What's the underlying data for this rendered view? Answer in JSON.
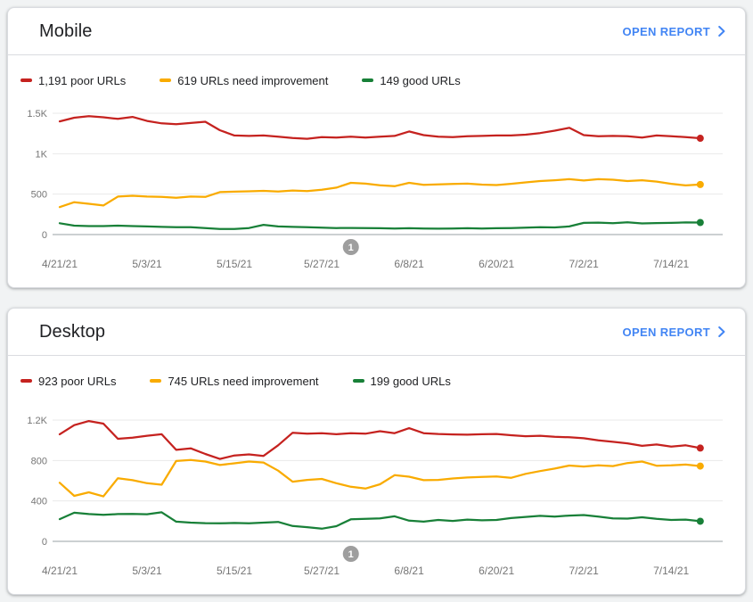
{
  "page": {
    "background": "#f1f3f4"
  },
  "colors": {
    "poor": "#c5221f",
    "needs_improvement": "#f9ab00",
    "good": "#188038",
    "link": "#4285f4",
    "axis_text": "#757575",
    "gridline": "#e9e9e9",
    "baseline": "#9aa0a6",
    "marker_fill": "#9e9e9e"
  },
  "cards": [
    {
      "title": "Mobile",
      "open_report_label": "OPEN REPORT",
      "legend": [
        {
          "label": "1,191 poor URLs",
          "color": "#c5221f"
        },
        {
          "label": "619 URLs need improvement",
          "color": "#f9ab00"
        },
        {
          "label": "149 good URLs",
          "color": "#188038"
        }
      ],
      "chart_data": {
        "type": "line",
        "x_tick_labels": [
          "4/21/21",
          "5/3/21",
          "5/15/21",
          "5/27/21",
          "6/8/21",
          "6/20/21",
          "7/2/21",
          "7/14/21"
        ],
        "x_span_days": 89,
        "x_tick_interval_days": 12,
        "point_interval_days": 2,
        "y_max": 1500,
        "y_ticks": [
          {
            "value": 0,
            "label": "0"
          },
          {
            "value": 500,
            "label": "500"
          },
          {
            "value": 1000,
            "label": "1K"
          },
          {
            "value": 1500,
            "label": "1.5K"
          }
        ],
        "grid": true,
        "legend_position": "top",
        "annotation_marker": {
          "label": "1",
          "day": 40
        },
        "series": [
          {
            "name": "poor URLs",
            "color": "#c5221f",
            "values": [
              1400,
              1445,
              1465,
              1450,
              1430,
              1455,
              1405,
              1375,
              1365,
              1380,
              1395,
              1290,
              1225,
              1220,
              1225,
              1210,
              1195,
              1185,
              1205,
              1200,
              1210,
              1200,
              1210,
              1220,
              1275,
              1230,
              1210,
              1205,
              1215,
              1220,
              1225,
              1225,
              1235,
              1255,
              1285,
              1320,
              1230,
              1215,
              1220,
              1215,
              1200,
              1225,
              1215,
              1205,
              1191
            ]
          },
          {
            "name": "URLs need improvement",
            "color": "#f9ab00",
            "values": [
              340,
              400,
              380,
              360,
              470,
              480,
              470,
              465,
              455,
              470,
              465,
              525,
              530,
              535,
              540,
              532,
              545,
              538,
              555,
              580,
              640,
              630,
              610,
              598,
              640,
              615,
              620,
              625,
              630,
              618,
              612,
              628,
              645,
              662,
              672,
              685,
              668,
              685,
              678,
              662,
              672,
              655,
              628,
              608,
              619
            ]
          },
          {
            "name": "good URLs",
            "color": "#188038",
            "values": [
              140,
              110,
              105,
              105,
              110,
              105,
              100,
              95,
              90,
              90,
              80,
              70,
              70,
              80,
              120,
              100,
              95,
              90,
              85,
              80,
              82,
              80,
              78,
              75,
              78,
              75,
              73,
              75,
              78,
              75,
              78,
              80,
              85,
              90,
              88,
              100,
              145,
              148,
              140,
              152,
              138,
              142,
              145,
              150,
              149
            ]
          }
        ]
      }
    },
    {
      "title": "Desktop",
      "open_report_label": "OPEN REPORT",
      "legend": [
        {
          "label": "923 poor URLs",
          "color": "#c5221f"
        },
        {
          "label": "745 URLs need improvement",
          "color": "#f9ab00"
        },
        {
          "label": "199 good URLs",
          "color": "#188038"
        }
      ],
      "chart_data": {
        "type": "line",
        "x_tick_labels": [
          "4/21/21",
          "5/3/21",
          "5/15/21",
          "5/27/21",
          "6/8/21",
          "6/20/21",
          "7/2/21",
          "7/14/21"
        ],
        "x_span_days": 89,
        "x_tick_interval_days": 12,
        "point_interval_days": 2,
        "y_max": 1200,
        "y_ticks": [
          {
            "value": 0,
            "label": "0"
          },
          {
            "value": 400,
            "label": "400"
          },
          {
            "value": 800,
            "label": "800"
          },
          {
            "value": 1200,
            "label": "1.2K"
          }
        ],
        "grid": true,
        "legend_position": "top",
        "annotation_marker": {
          "label": "1",
          "day": 40
        },
        "series": [
          {
            "name": "poor URLs",
            "color": "#c5221f",
            "values": [
              1060,
              1150,
              1190,
              1165,
              1015,
              1025,
              1045,
              1060,
              905,
              920,
              865,
              815,
              850,
              860,
              845,
              950,
              1075,
              1065,
              1070,
              1060,
              1070,
              1065,
              1090,
              1070,
              1120,
              1070,
              1062,
              1058,
              1055,
              1060,
              1062,
              1050,
              1040,
              1045,
              1035,
              1030,
              1020,
              1000,
              985,
              970,
              945,
              958,
              938,
              950,
              923
            ]
          },
          {
            "name": "URLs need improvement",
            "color": "#f9ab00",
            "values": [
              580,
              450,
              485,
              445,
              625,
              605,
              575,
              560,
              795,
              805,
              790,
              755,
              772,
              790,
              780,
              700,
              590,
              608,
              618,
              575,
              540,
              522,
              565,
              655,
              640,
              605,
              608,
              622,
              632,
              638,
              642,
              628,
              668,
              695,
              720,
              750,
              740,
              752,
              745,
              775,
              790,
              748,
              752,
              760,
              745
            ]
          },
          {
            "name": "good URLs",
            "color": "#188038",
            "values": [
              220,
              283,
              270,
              262,
              270,
              272,
              268,
              288,
              195,
              185,
              180,
              178,
              182,
              178,
              185,
              192,
              152,
              140,
              125,
              150,
              218,
              222,
              228,
              248,
              205,
              195,
              212,
              202,
              215,
              208,
              212,
              230,
              242,
              252,
              245,
              255,
              260,
              245,
              228,
              225,
              238,
              222,
              212,
              215,
              199
            ]
          }
        ]
      }
    }
  ]
}
